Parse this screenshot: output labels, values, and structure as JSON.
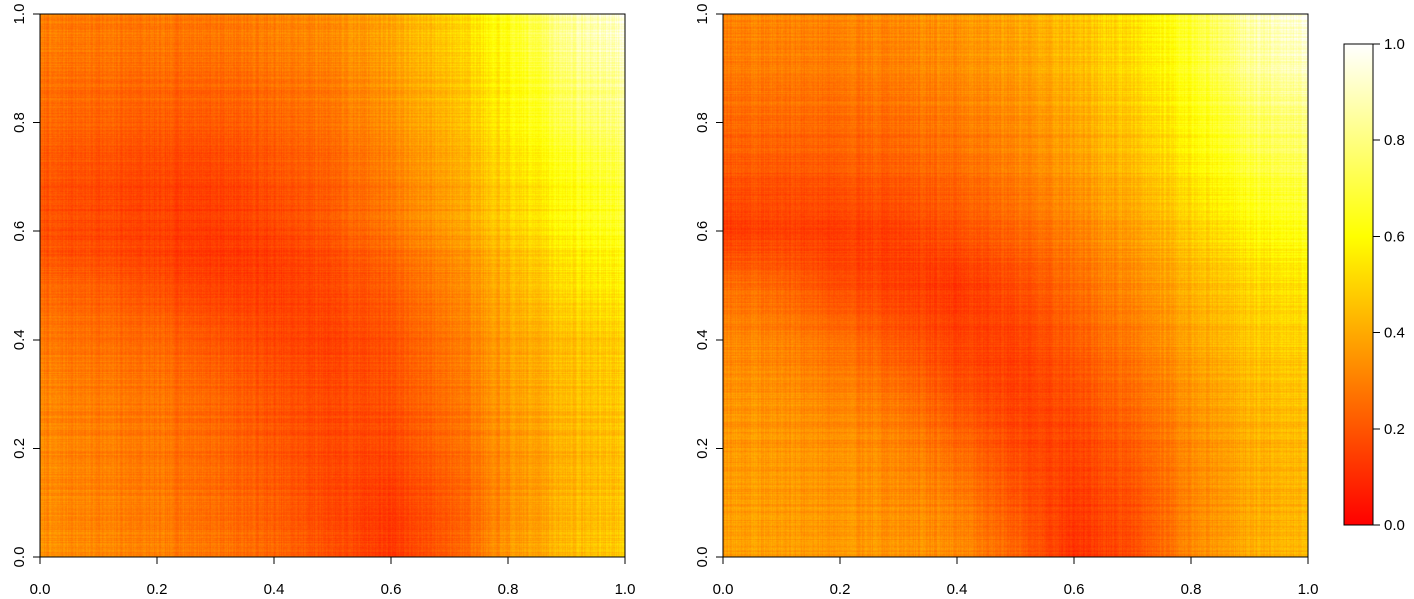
{
  "chart_data": [
    {
      "type": "heatmap",
      "panel": "left",
      "xlim": [
        0.0,
        1.0
      ],
      "ylim": [
        0.0,
        1.0
      ],
      "x_tick_labels": [
        "0.0",
        "0.2",
        "0.4",
        "0.6",
        "0.8",
        "1.0"
      ],
      "y_tick_labels": [
        "0.0",
        "0.2",
        "0.4",
        "0.6",
        "0.8",
        "1.0"
      ],
      "value_range": [
        0.0,
        1.0
      ],
      "colormap": "heat",
      "grid": false,
      "x_grid": [
        0.0,
        0.1,
        0.2,
        0.3,
        0.4,
        0.5,
        0.6,
        0.7,
        0.8,
        0.9,
        1.0
      ],
      "y_grid": [
        0.0,
        0.1,
        0.2,
        0.3,
        0.4,
        0.5,
        0.6,
        0.7,
        0.8,
        0.9,
        1.0
      ],
      "z": [
        [
          0.34,
          0.32,
          0.3,
          0.28,
          0.24,
          0.19,
          0.13,
          0.22,
          0.35,
          0.44,
          0.48
        ],
        [
          0.33,
          0.31,
          0.29,
          0.26,
          0.22,
          0.17,
          0.14,
          0.22,
          0.33,
          0.43,
          0.47
        ],
        [
          0.32,
          0.3,
          0.28,
          0.25,
          0.2,
          0.17,
          0.17,
          0.25,
          0.34,
          0.42,
          0.46
        ],
        [
          0.31,
          0.29,
          0.27,
          0.24,
          0.19,
          0.17,
          0.19,
          0.27,
          0.36,
          0.44,
          0.48
        ],
        [
          0.29,
          0.27,
          0.25,
          0.21,
          0.17,
          0.16,
          0.2,
          0.29,
          0.38,
          0.46,
          0.5
        ],
        [
          0.24,
          0.22,
          0.18,
          0.15,
          0.14,
          0.17,
          0.22,
          0.31,
          0.41,
          0.52,
          0.57
        ],
        [
          0.18,
          0.16,
          0.14,
          0.13,
          0.15,
          0.2,
          0.27,
          0.36,
          0.46,
          0.58,
          0.64
        ],
        [
          0.2,
          0.18,
          0.16,
          0.16,
          0.19,
          0.23,
          0.3,
          0.39,
          0.5,
          0.62,
          0.7
        ],
        [
          0.24,
          0.23,
          0.21,
          0.21,
          0.23,
          0.27,
          0.34,
          0.43,
          0.56,
          0.72,
          0.8
        ],
        [
          0.28,
          0.27,
          0.26,
          0.26,
          0.28,
          0.31,
          0.38,
          0.47,
          0.6,
          0.8,
          0.88
        ],
        [
          0.3,
          0.29,
          0.29,
          0.29,
          0.31,
          0.34,
          0.4,
          0.5,
          0.64,
          0.86,
          0.95
        ]
      ]
    },
    {
      "type": "heatmap",
      "panel": "right",
      "xlim": [
        0.0,
        1.0
      ],
      "ylim": [
        0.0,
        1.0
      ],
      "x_tick_labels": [
        "0.0",
        "0.2",
        "0.4",
        "0.6",
        "0.8",
        "1.0"
      ],
      "y_tick_labels": [
        "0.0",
        "0.2",
        "0.4",
        "0.6",
        "0.8",
        "1.0"
      ],
      "value_range": [
        0.0,
        1.0
      ],
      "colormap": "heat",
      "grid": false,
      "x_grid": [
        0.0,
        0.1,
        0.2,
        0.3,
        0.4,
        0.5,
        0.6,
        0.7,
        0.8,
        0.9,
        1.0
      ],
      "y_grid": [
        0.0,
        0.1,
        0.2,
        0.3,
        0.4,
        0.5,
        0.6,
        0.7,
        0.8,
        0.9,
        1.0
      ],
      "z": [
        [
          0.38,
          0.37,
          0.36,
          0.35,
          0.33,
          0.24,
          0.11,
          0.18,
          0.32,
          0.4,
          0.44
        ],
        [
          0.37,
          0.36,
          0.35,
          0.33,
          0.3,
          0.2,
          0.13,
          0.19,
          0.31,
          0.39,
          0.43
        ],
        [
          0.36,
          0.35,
          0.34,
          0.31,
          0.25,
          0.17,
          0.15,
          0.22,
          0.32,
          0.4,
          0.44
        ],
        [
          0.35,
          0.34,
          0.31,
          0.27,
          0.19,
          0.15,
          0.18,
          0.26,
          0.35,
          0.43,
          0.47
        ],
        [
          0.32,
          0.3,
          0.26,
          0.2,
          0.15,
          0.15,
          0.21,
          0.29,
          0.38,
          0.46,
          0.5
        ],
        [
          0.27,
          0.24,
          0.18,
          0.15,
          0.13,
          0.18,
          0.25,
          0.33,
          0.42,
          0.5,
          0.55
        ],
        [
          0.14,
          0.15,
          0.14,
          0.15,
          0.19,
          0.24,
          0.3,
          0.38,
          0.48,
          0.58,
          0.64
        ],
        [
          0.2,
          0.19,
          0.2,
          0.21,
          0.24,
          0.29,
          0.35,
          0.43,
          0.54,
          0.66,
          0.72
        ],
        [
          0.25,
          0.25,
          0.25,
          0.26,
          0.29,
          0.33,
          0.39,
          0.48,
          0.6,
          0.74,
          0.8
        ],
        [
          0.29,
          0.29,
          0.29,
          0.3,
          0.33,
          0.37,
          0.43,
          0.52,
          0.65,
          0.82,
          0.9
        ],
        [
          0.32,
          0.32,
          0.32,
          0.33,
          0.36,
          0.4,
          0.46,
          0.55,
          0.69,
          0.88,
          0.97
        ]
      ]
    }
  ],
  "colorbar": {
    "range": [
      0.0,
      1.0
    ],
    "tick_labels": [
      "0.0",
      "0.2",
      "0.4",
      "0.6",
      "0.8",
      "1.0"
    ],
    "stops": [
      "#ff0000",
      "#ff5500",
      "#ffaa00",
      "#ffff00",
      "#ffff80",
      "#ffffff"
    ]
  }
}
